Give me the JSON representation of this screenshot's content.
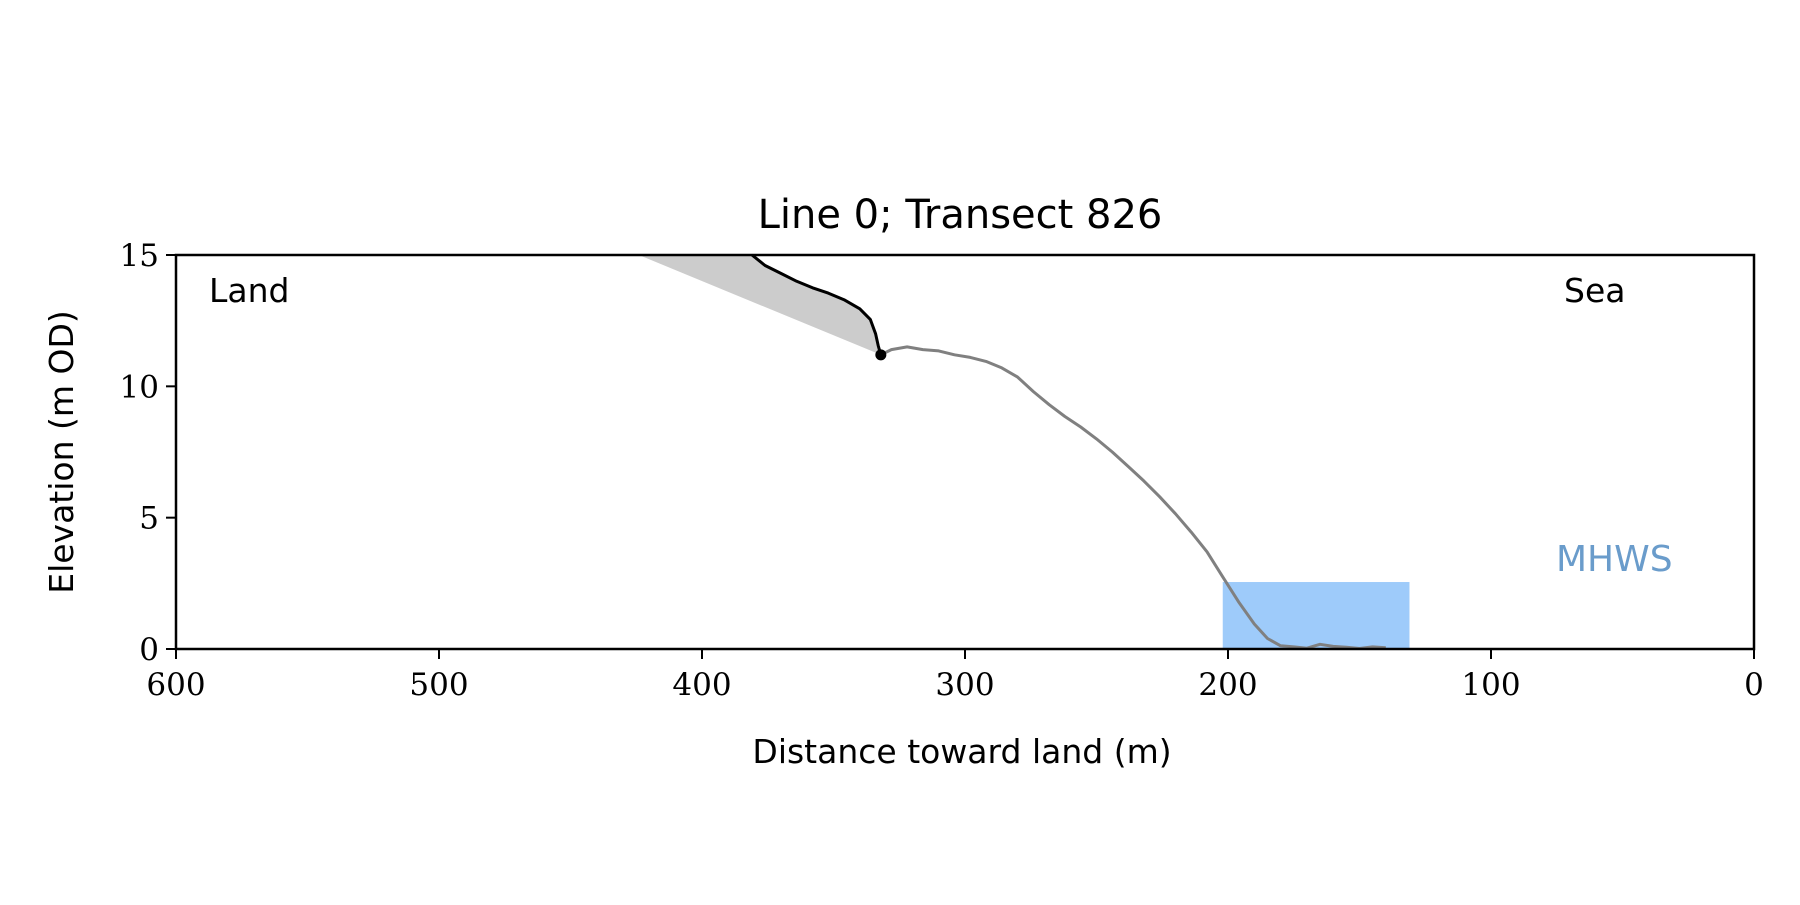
{
  "chart_data": {
    "type": "line",
    "title": "Line 0; Transect 826",
    "xlabel": "Distance toward land (m)",
    "ylabel": "Elevation (m OD)",
    "xlim": [
      600,
      0
    ],
    "ylim": [
      0,
      15
    ],
    "x_ticks": [
      600,
      500,
      400,
      300,
      200,
      100,
      0
    ],
    "y_ticks": [
      0,
      5,
      10,
      15
    ],
    "grid": false,
    "annotations": {
      "land": "Land",
      "sea": "Sea",
      "mhws": "MHWS"
    },
    "colors": {
      "profile": "#808080",
      "cliff": "#000000",
      "shade": "#cccccc",
      "mhws_fill": "#9ecbfa",
      "mhws_text": "#6a9ccb"
    },
    "series": [
      {
        "values": [
          [
            332,
            11.2
          ],
          [
            328,
            11.4
          ],
          [
            322,
            11.5
          ],
          [
            316,
            11.4
          ],
          [
            310,
            11.35
          ],
          [
            304,
            11.2
          ],
          [
            298,
            11.1
          ],
          [
            292,
            10.95
          ],
          [
            286,
            10.7
          ],
          [
            280,
            10.35
          ],
          [
            274,
            9.8
          ],
          [
            268,
            9.3
          ],
          [
            262,
            8.85
          ],
          [
            256,
            8.45
          ],
          [
            250,
            8.0
          ],
          [
            244,
            7.5
          ],
          [
            238,
            6.95
          ],
          [
            232,
            6.4
          ],
          [
            226,
            5.8
          ],
          [
            220,
            5.15
          ],
          [
            214,
            4.45
          ],
          [
            208,
            3.7
          ],
          [
            202,
            2.75
          ],
          [
            196,
            1.8
          ],
          [
            190,
            0.95
          ],
          [
            185,
            0.4
          ],
          [
            180,
            0.12
          ],
          [
            175,
            0.08
          ],
          [
            170,
            0.03
          ],
          [
            165,
            0.18
          ],
          [
            160,
            0.1
          ],
          [
            155,
            0.07
          ],
          [
            150,
            0.02
          ],
          [
            145,
            0.08
          ],
          [
            140,
            0.05
          ]
        ]
      },
      {
        "values": [
          [
            381,
            15.0
          ],
          [
            376,
            14.6
          ],
          [
            370,
            14.3
          ],
          [
            364,
            14.0
          ],
          [
            358,
            13.75
          ],
          [
            352,
            13.55
          ],
          [
            346,
            13.3
          ],
          [
            340,
            12.95
          ],
          [
            336,
            12.55
          ],
          [
            334,
            12.0
          ],
          [
            333,
            11.55
          ],
          [
            332,
            11.2
          ]
        ]
      }
    ],
    "shaded_region": {
      "upper": [
        [
          424,
          15.0
        ],
        [
          381,
          15.0
        ],
        [
          376,
          14.6
        ],
        [
          370,
          14.3
        ],
        [
          364,
          14.0
        ],
        [
          358,
          13.75
        ],
        [
          352,
          13.55
        ],
        [
          346,
          13.3
        ],
        [
          340,
          12.95
        ],
        [
          336,
          12.55
        ],
        [
          334,
          12.0
        ],
        [
          333,
          11.55
        ],
        [
          332,
          11.2
        ]
      ],
      "lower": [
        [
          424,
          15.0
        ],
        [
          332,
          11.2
        ]
      ]
    },
    "cliff_top_point": [
      332,
      11.2
    ],
    "mhws_region": {
      "x": [
        131,
        202
      ],
      "y": [
        0,
        2.55
      ]
    }
  }
}
